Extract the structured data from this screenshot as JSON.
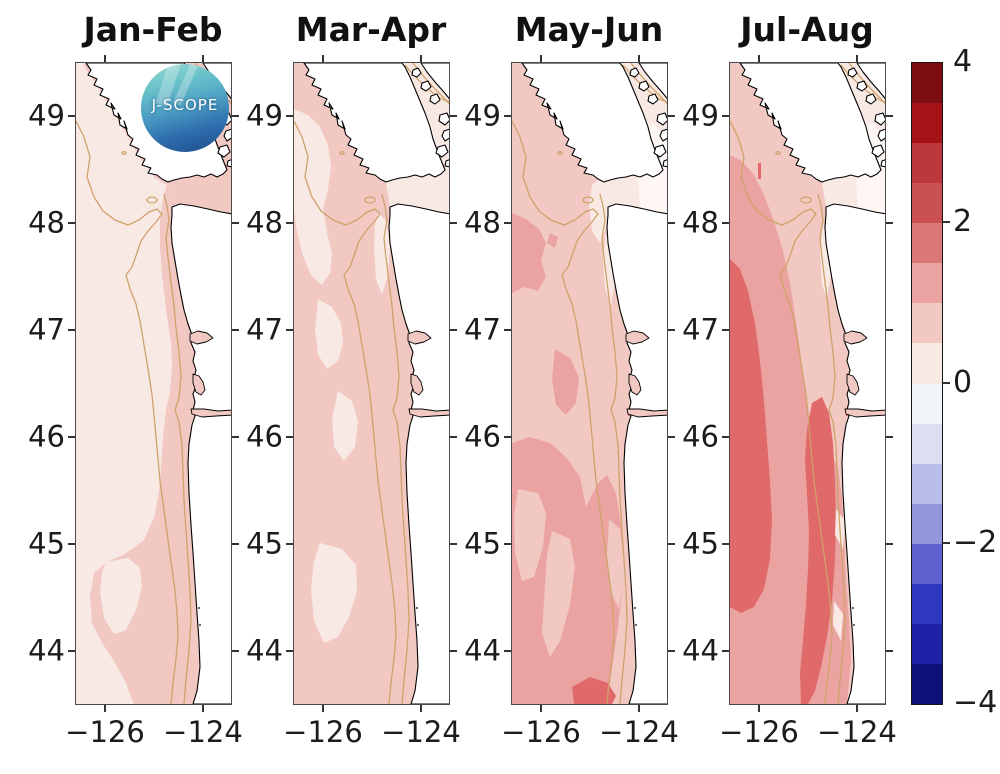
{
  "figure": {
    "background": "#ffffff",
    "description": "J-SCOPE seasonal bottom/surface anomaly maps, four bimonthly panels with shared red-blue colorbar"
  },
  "panels": [
    {
      "title": "Jan-Feb"
    },
    {
      "title": "Mar-Apr"
    },
    {
      "title": "May-Jun"
    },
    {
      "title": "Jul-Aug"
    }
  ],
  "axes": {
    "y_ticks": [
      "49",
      "48",
      "47",
      "46",
      "45",
      "44"
    ],
    "x_ticks": [
      "−126",
      "−124"
    ]
  },
  "colorbar": {
    "ticks": [
      "4",
      "2",
      "0",
      "−2",
      "−4"
    ],
    "segment_colors": [
      "#7c0d11",
      "#a31318",
      "#bc383b",
      "#cb5052",
      "#dc7878",
      "#eaa3a1",
      "#f2c8c3",
      "#f9e9e4",
      "#f3f6f9",
      "#dcdff2",
      "#b9bde9",
      "#9297dd",
      "#5d62cf",
      "#3138c0",
      "#1f22a6",
      "#0f1078"
    ]
  },
  "palette": {
    "L1": "#f9e9e4",
    "L2": "#f2c8c3",
    "L3": "#eaa3a1",
    "L4": "#e06a6a",
    "W": "#fdf6f2",
    "contour_tan": "#cfa26a",
    "land": "#ffffff",
    "coast": "#000000"
  },
  "logo": {
    "text": "J-SCOPE"
  },
  "chart_data": {
    "type": "heatmap",
    "subtype": "filled-contour anomaly maps, 4 bimonthly panels, NE Pacific coastal ocean",
    "region": "Washington-Oregon shelf, Strait of Juan de Fuca, SW Vancouver Island",
    "x_axis": {
      "ticks": [
        -126,
        -124
      ],
      "range": [
        -126.6,
        -123.4
      ]
    },
    "y_axis": {
      "ticks": [
        49,
        48,
        47,
        46,
        45,
        44
      ],
      "range": [
        43.5,
        49.5
      ]
    },
    "colorbar": {
      "range": [
        -4,
        4
      ],
      "ticks": [
        4,
        2,
        0,
        -2,
        -4
      ],
      "n_segments": 16,
      "orientation": "vertical",
      "colormap": "diverging blue-white-red"
    },
    "panels": [
      {
        "title": "Jan-Feb",
        "offshore_anomaly_range": [
          0,
          0.5
        ],
        "nearshore_anomaly_range": [
          0.5,
          1.0
        ],
        "notes": "pale offshore, pink coastal band and strait"
      },
      {
        "title": "Mar-Apr",
        "offshore_anomaly_range": [
          0.5,
          1.0
        ],
        "pale_patch_range": [
          0,
          0.5
        ],
        "notes": "mostly +0.5 to +1 with pale patches offshore NW and center"
      },
      {
        "title": "May-Jun",
        "typical_anomaly_range": [
          0.5,
          1.5
        ],
        "max_patch_range": [
          1.5,
          2.0
        ],
        "notes": "+1 to +1.5 over southern half, small +1.5..2 patch at south edge"
      },
      {
        "title": "Jul-Aug",
        "offshore_core_range": [
          1.5,
          2.0
        ],
        "typical_anomaly_range": [
          1.0,
          1.5
        ],
        "notes": "large +1.5..2 offshore core and nearshore warm band, pale strait"
      }
    ]
  }
}
